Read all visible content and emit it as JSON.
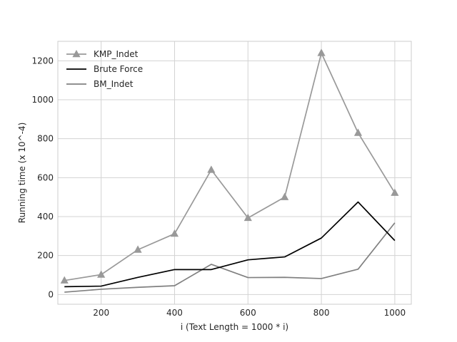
{
  "chart_data": {
    "type": "line",
    "title": "",
    "xlabel": "i (Text Length = 1000 * i)",
    "ylabel": "Running time (x 10^-4)",
    "xlim": [
      82,
      1045
    ],
    "ylim": [
      -50,
      1300
    ],
    "xticks": [
      200,
      400,
      600,
      800,
      1000
    ],
    "yticks": [
      0,
      200,
      400,
      600,
      800,
      1000,
      1200
    ],
    "grid": true,
    "legend_position": "top-left",
    "x": [
      100,
      200,
      300,
      400,
      500,
      600,
      700,
      800,
      900,
      1000
    ],
    "series": [
      {
        "name": "KMP_Indet",
        "color": "#999999",
        "marker": "triangle",
        "values": [
          72,
          102,
          230,
          312,
          640,
          393,
          500,
          1240,
          830,
          522
        ]
      },
      {
        "name": "Brute Force",
        "color": "#000000",
        "marker": "none",
        "values": [
          40,
          43,
          88,
          128,
          128,
          178,
          193,
          290,
          475,
          277
        ]
      },
      {
        "name": "BM_Indet",
        "color": "#808080",
        "marker": "none",
        "values": [
          12,
          27,
          37,
          45,
          155,
          87,
          88,
          82,
          130,
          368
        ]
      }
    ]
  }
}
